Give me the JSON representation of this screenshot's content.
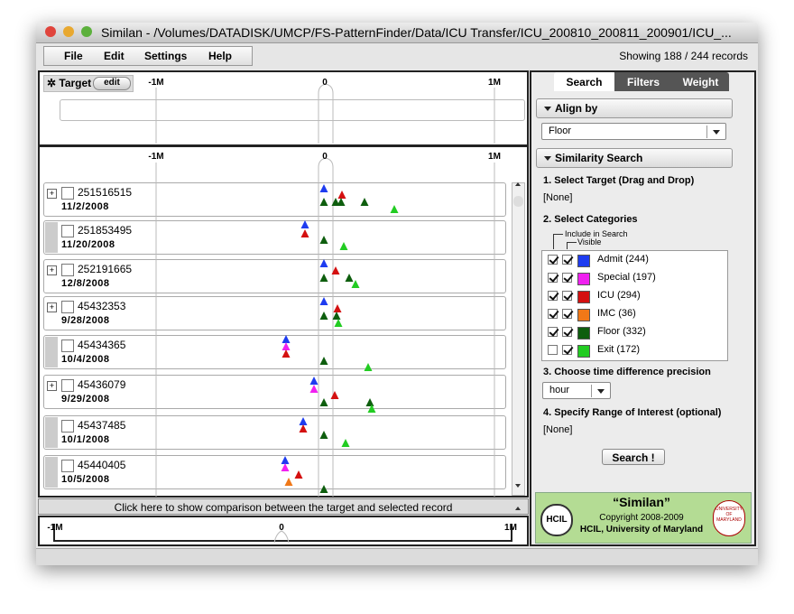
{
  "window": {
    "title": "Similan - /Volumes/DATADISK/UMCP/FS-PatternFinder/Data/ICU Transfer/ICU_200810_200811_200901/ICU_..."
  },
  "menu": [
    "File",
    "Edit",
    "Settings",
    "Help"
  ],
  "status": "Showing 188 / 244 records",
  "target": {
    "label": "Target",
    "edit": "edit"
  },
  "axis": {
    "ticks": [
      "-1M",
      "0",
      "1M"
    ]
  },
  "records": [
    {
      "id": "251516515",
      "date": "11/2/2008",
      "expandable": true
    },
    {
      "id": "251853495",
      "date": "11/20/2008",
      "expandable": false
    },
    {
      "id": "252191665",
      "date": "12/8/2008",
      "expandable": true
    },
    {
      "id": "45432353",
      "date": "9/28/2008",
      "expandable": true
    },
    {
      "id": "45434365",
      "date": "10/4/2008",
      "expandable": false
    },
    {
      "id": "45436079",
      "date": "9/29/2008",
      "expandable": true
    },
    {
      "id": "45437485",
      "date": "10/1/2008",
      "expandable": false
    },
    {
      "id": "45440405",
      "date": "10/5/2008",
      "expandable": false
    }
  ],
  "comparison": "Click here to show comparison between the target and selected record",
  "tabs": [
    "Search",
    "Filters",
    "Weight"
  ],
  "search": {
    "align_header": "Align by",
    "align_value": "Floor",
    "similarity_header": "Similarity Search",
    "step1": "1. Select Target (Drag and Drop)",
    "step1_value": "[None]",
    "step2": "2. Select Categories",
    "include_label": "Include in Search",
    "visible_label": "Visible",
    "categories": [
      {
        "label": "Admit (244)",
        "color": "#1e3cf0",
        "include": true,
        "visible": true
      },
      {
        "label": "Special (197)",
        "color": "#f020f0",
        "include": true,
        "visible": true
      },
      {
        "label": "ICU (294)",
        "color": "#d41010",
        "include": true,
        "visible": true
      },
      {
        "label": "IMC (36)",
        "color": "#f07818",
        "include": true,
        "visible": true
      },
      {
        "label": "Floor (332)",
        "color": "#0e5e0e",
        "include": true,
        "visible": true
      },
      {
        "label": "Exit (172)",
        "color": "#22cc22",
        "include": false,
        "visible": true
      }
    ],
    "step3": "3. Choose time difference precision",
    "precision": "hour",
    "step4": "4. Specify Range of Interest (optional)",
    "step4_value": "[None]",
    "button": "Search !"
  },
  "logo": {
    "hcil": "HCIL",
    "name": "“Similan”",
    "copyright": "Copyright 2008-2009",
    "org": "HCIL, University of Maryland",
    "umd": "UNIVERSITY OF MARYLAND"
  }
}
